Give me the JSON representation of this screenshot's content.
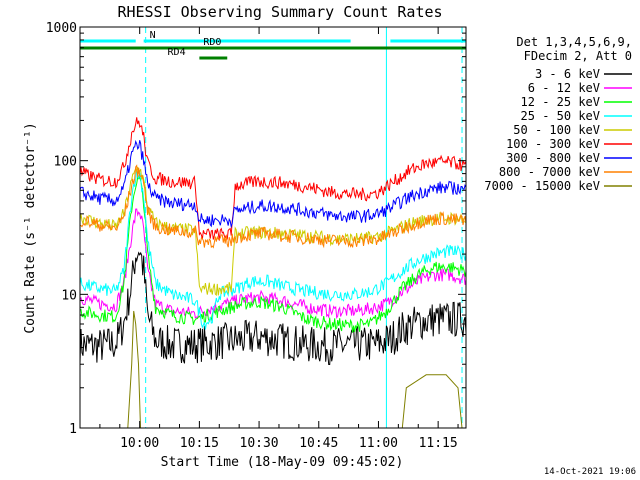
{
  "chart_data": {
    "type": "line",
    "title": "RHESSI Observing Summary Count Rates",
    "xlabel": "Start Time (18-May-09 09:45:02)",
    "ylabel": "Count Rate (s⁻¹ detector⁻¹)",
    "y_scale": "log",
    "ylim": [
      1,
      1000
    ],
    "xlim_minutes": [
      -15,
      82
    ],
    "x_ticks": [
      {
        "t": 0,
        "label": "10:00"
      },
      {
        "t": 15,
        "label": "10:15"
      },
      {
        "t": 30,
        "label": "10:30"
      },
      {
        "t": 45,
        "label": "10:45"
      },
      {
        "t": 60,
        "label": "11:00"
      },
      {
        "t": 75,
        "label": "11:15"
      }
    ],
    "y_ticks": [
      {
        "v": 1,
        "label": "1"
      },
      {
        "v": 10,
        "label": "10"
      },
      {
        "v": 100,
        "label": "100"
      },
      {
        "v": 1000,
        "label": "1000"
      }
    ],
    "legend_header": [
      "Det 1,3,4,5,6,9,",
      "FDecim 2, Att 0"
    ],
    "legend_position": "right",
    "series": [
      {
        "name": "3 - 6 keV",
        "color": "#000000",
        "points": [
          [
            -15,
            4.2
          ],
          [
            -10,
            4.1
          ],
          [
            -6,
            4.3
          ],
          [
            -4,
            6
          ],
          [
            -2,
            12
          ],
          [
            -1,
            20
          ],
          [
            0,
            22
          ],
          [
            1,
            15
          ],
          [
            2,
            7
          ],
          [
            4,
            4.5
          ],
          [
            8,
            4.2
          ],
          [
            14,
            4.2
          ],
          [
            20,
            4.4
          ],
          [
            26,
            4.6
          ],
          [
            30,
            4.8
          ],
          [
            36,
            4.5
          ],
          [
            42,
            4.2
          ],
          [
            48,
            4.1
          ],
          [
            54,
            4.2
          ],
          [
            58,
            4.2
          ],
          [
            60,
            4.3
          ],
          [
            63,
            4.6
          ],
          [
            66,
            5.5
          ],
          [
            70,
            6.2
          ],
          [
            74,
            6.5
          ],
          [
            78,
            6.5
          ],
          [
            82,
            6.5
          ]
        ]
      },
      {
        "name": "6 - 12 keV",
        "color": "#ff00ff",
        "points": [
          [
            -15,
            9.5
          ],
          [
            -10,
            8.5
          ],
          [
            -6,
            8.2
          ],
          [
            -4,
            12
          ],
          [
            -2,
            28
          ],
          [
            -1,
            40
          ],
          [
            0,
            42
          ],
          [
            1,
            30
          ],
          [
            2,
            15
          ],
          [
            4,
            8.5
          ],
          [
            8,
            7.5
          ],
          [
            14,
            7.2
          ],
          [
            20,
            8.2
          ],
          [
            26,
            9.2
          ],
          [
            30,
            9.5
          ],
          [
            36,
            9
          ],
          [
            42,
            8
          ],
          [
            48,
            7.5
          ],
          [
            54,
            7.5
          ],
          [
            58,
            7.8
          ],
          [
            62,
            8.5
          ],
          [
            66,
            10.5
          ],
          [
            70,
            12.5
          ],
          [
            74,
            14
          ],
          [
            78,
            14
          ],
          [
            82,
            13
          ]
        ]
      },
      {
        "name": "12 - 25 keV",
        "color": "#00ff00",
        "points": [
          [
            -15,
            7.5
          ],
          [
            -10,
            7
          ],
          [
            -6,
            6.8
          ],
          [
            -4,
            12
          ],
          [
            -2,
            45
          ],
          [
            -1,
            68
          ],
          [
            0,
            72
          ],
          [
            1,
            50
          ],
          [
            2,
            20
          ],
          [
            4,
            8
          ],
          [
            8,
            7
          ],
          [
            14,
            6.5
          ],
          [
            20,
            7.5
          ],
          [
            26,
            8.5
          ],
          [
            30,
            8.8
          ],
          [
            36,
            8
          ],
          [
            42,
            6.5
          ],
          [
            48,
            6
          ],
          [
            54,
            5.8
          ],
          [
            58,
            6
          ],
          [
            62,
            7.5
          ],
          [
            66,
            11
          ],
          [
            70,
            14
          ],
          [
            74,
            16
          ],
          [
            78,
            16
          ],
          [
            82,
            15
          ]
        ]
      },
      {
        "name": "25 - 50 keV",
        "color": "#00ffff",
        "points": [
          [
            -15,
            12
          ],
          [
            -10,
            11
          ],
          [
            -6,
            10.5
          ],
          [
            -4,
            15
          ],
          [
            -2,
            55
          ],
          [
            -1,
            78
          ],
          [
            0,
            80
          ],
          [
            1,
            55
          ],
          [
            2,
            25
          ],
          [
            4,
            12
          ],
          [
            8,
            10
          ],
          [
            14,
            9
          ],
          [
            16,
            6
          ],
          [
            18,
            6.5
          ],
          [
            20,
            10
          ],
          [
            24,
            11
          ],
          [
            28,
            12.5
          ],
          [
            32,
            12.5
          ],
          [
            36,
            11.5
          ],
          [
            42,
            10.5
          ],
          [
            48,
            10
          ],
          [
            54,
            10
          ],
          [
            58,
            10.5
          ],
          [
            62,
            12
          ],
          [
            66,
            15
          ],
          [
            70,
            18
          ],
          [
            74,
            20
          ],
          [
            78,
            21
          ],
          [
            82,
            20
          ]
        ]
      },
      {
        "name": "50 - 100 keV",
        "color": "#cccc00",
        "points": [
          [
            -15,
            38
          ],
          [
            -10,
            34
          ],
          [
            -6,
            32
          ],
          [
            -4,
            40
          ],
          [
            -2,
            70
          ],
          [
            -1,
            85
          ],
          [
            0,
            88
          ],
          [
            1,
            70
          ],
          [
            2,
            45
          ],
          [
            4,
            34
          ],
          [
            8,
            31
          ],
          [
            14,
            30
          ],
          [
            15,
            11
          ],
          [
            23,
            11
          ],
          [
            24,
            28
          ],
          [
            28,
            29
          ],
          [
            32,
            29
          ],
          [
            38,
            28
          ],
          [
            44,
            27
          ],
          [
            50,
            26
          ],
          [
            56,
            26
          ],
          [
            60,
            27
          ],
          [
            64,
            30
          ],
          [
            68,
            34
          ],
          [
            72,
            36
          ],
          [
            76,
            37
          ],
          [
            80,
            37
          ],
          [
            82,
            36
          ]
        ]
      },
      {
        "name": "100 - 300 keV",
        "color": "#ff0000",
        "points": [
          [
            -15,
            82
          ],
          [
            -10,
            72
          ],
          [
            -6,
            70
          ],
          [
            -4,
            90
          ],
          [
            -2,
            160
          ],
          [
            -1,
            190
          ],
          [
            0,
            195
          ],
          [
            1,
            150
          ],
          [
            2,
            95
          ],
          [
            4,
            74
          ],
          [
            8,
            70
          ],
          [
            14,
            68
          ],
          [
            15,
            28
          ],
          [
            23,
            28
          ],
          [
            24,
            65
          ],
          [
            30,
            70
          ],
          [
            36,
            68
          ],
          [
            42,
            64
          ],
          [
            48,
            58
          ],
          [
            54,
            56
          ],
          [
            58,
            56
          ],
          [
            60,
            58
          ],
          [
            64,
            70
          ],
          [
            68,
            85
          ],
          [
            72,
            95
          ],
          [
            76,
            98
          ],
          [
            80,
            95
          ],
          [
            82,
            90
          ]
        ]
      },
      {
        "name": "300 - 800 keV",
        "color": "#0000ff",
        "points": [
          [
            -15,
            58
          ],
          [
            -10,
            52
          ],
          [
            -6,
            50
          ],
          [
            -4,
            62
          ],
          [
            -2,
            110
          ],
          [
            -1,
            128
          ],
          [
            0,
            130
          ],
          [
            1,
            100
          ],
          [
            2,
            66
          ],
          [
            4,
            52
          ],
          [
            8,
            48
          ],
          [
            14,
            47
          ],
          [
            15,
            36
          ],
          [
            23,
            36
          ],
          [
            24,
            42
          ],
          [
            30,
            46
          ],
          [
            36,
            45
          ],
          [
            42,
            42
          ],
          [
            48,
            39
          ],
          [
            54,
            38
          ],
          [
            58,
            39
          ],
          [
            60,
            40
          ],
          [
            64,
            46
          ],
          [
            68,
            54
          ],
          [
            72,
            60
          ],
          [
            76,
            63
          ],
          [
            80,
            62
          ],
          [
            82,
            60
          ]
        ]
      },
      {
        "name": "800 - 7000 keV",
        "color": "#ff8000",
        "points": [
          [
            -15,
            36
          ],
          [
            -10,
            33
          ],
          [
            -6,
            31
          ],
          [
            -4,
            38
          ],
          [
            -2,
            65
          ],
          [
            -1,
            82
          ],
          [
            0,
            85
          ],
          [
            1,
            68
          ],
          [
            2,
            42
          ],
          [
            4,
            32
          ],
          [
            8,
            30
          ],
          [
            14,
            29
          ],
          [
            15,
            25
          ],
          [
            23,
            25
          ],
          [
            24,
            27
          ],
          [
            28,
            28
          ],
          [
            32,
            28.5
          ],
          [
            38,
            27
          ],
          [
            44,
            26
          ],
          [
            50,
            25
          ],
          [
            56,
            25
          ],
          [
            60,
            26
          ],
          [
            64,
            29
          ],
          [
            68,
            33
          ],
          [
            72,
            36
          ],
          [
            76,
            37
          ],
          [
            80,
            36
          ],
          [
            82,
            35
          ]
        ]
      },
      {
        "name": "7000 - 15000 keV",
        "color": "#808000",
        "points": [
          [
            -3,
            1
          ],
          [
            -2,
            3
          ],
          [
            -1.5,
            7.5
          ],
          [
            -1,
            6
          ],
          [
            -0.3,
            3
          ],
          [
            0.2,
            1
          ],
          [
            62,
            1
          ],
          [
            66,
            1
          ],
          [
            67,
            2
          ],
          [
            72,
            2.5
          ],
          [
            77,
            2.5
          ],
          [
            80,
            2
          ],
          [
            81,
            1
          ]
        ]
      }
    ],
    "annotations": [
      {
        "label": "N",
        "color": "#00ffff",
        "bars": [
          [
            -15,
            -1
          ],
          [
            1,
            53
          ],
          [
            63,
            82
          ]
        ]
      },
      {
        "label": "RD0",
        "color": "#008000",
        "bars": [
          [
            -15,
            82
          ]
        ]
      },
      {
        "label": "RD4",
        "color": "#008000",
        "bars": [
          [
            15,
            22
          ]
        ]
      }
    ],
    "vertical_lines": [
      {
        "t": -15,
        "style": "solid",
        "color": "#00ffff"
      },
      {
        "t": 1.5,
        "style": "dashed",
        "color": "#00ffff"
      },
      {
        "t": 62,
        "style": "solid",
        "color": "#00ffff"
      },
      {
        "t": 81,
        "style": "dashed",
        "color": "#00ffff"
      }
    ]
  },
  "footer": {
    "date": "14-Oct-2021 19:06"
  }
}
